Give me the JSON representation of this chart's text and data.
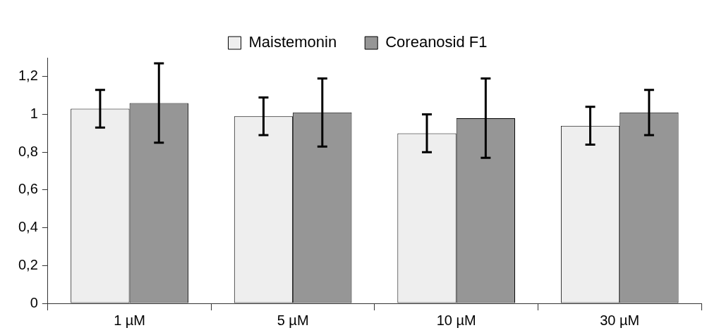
{
  "chart_data": {
    "type": "bar",
    "categories": [
      "1 µM",
      "5 µM",
      "10 µM",
      "30 µM"
    ],
    "series": [
      {
        "name": "Maistemonin",
        "color": "#eeeeee",
        "values": [
          1.03,
          0.99,
          0.9,
          0.94
        ],
        "errors": [
          0.1,
          0.1,
          0.1,
          0.1
        ]
      },
      {
        "name": "Coreanosid F1",
        "color": "#969696",
        "values": [
          1.06,
          1.01,
          0.98,
          1.01
        ],
        "errors": [
          0.21,
          0.18,
          0.21,
          0.12
        ]
      }
    ],
    "ylim": [
      0,
      1.3
    ],
    "yticks": [
      0,
      {
        "value": 0.2,
        "label": "0,2"
      },
      {
        "value": 0.4,
        "label": "0,4"
      },
      {
        "value": 0.6,
        "label": "0,6"
      },
      {
        "value": 0.8,
        "label": "0,8"
      },
      1,
      {
        "value": 1.2,
        "label": "1,2"
      }
    ],
    "grid": false,
    "legend": "top"
  }
}
